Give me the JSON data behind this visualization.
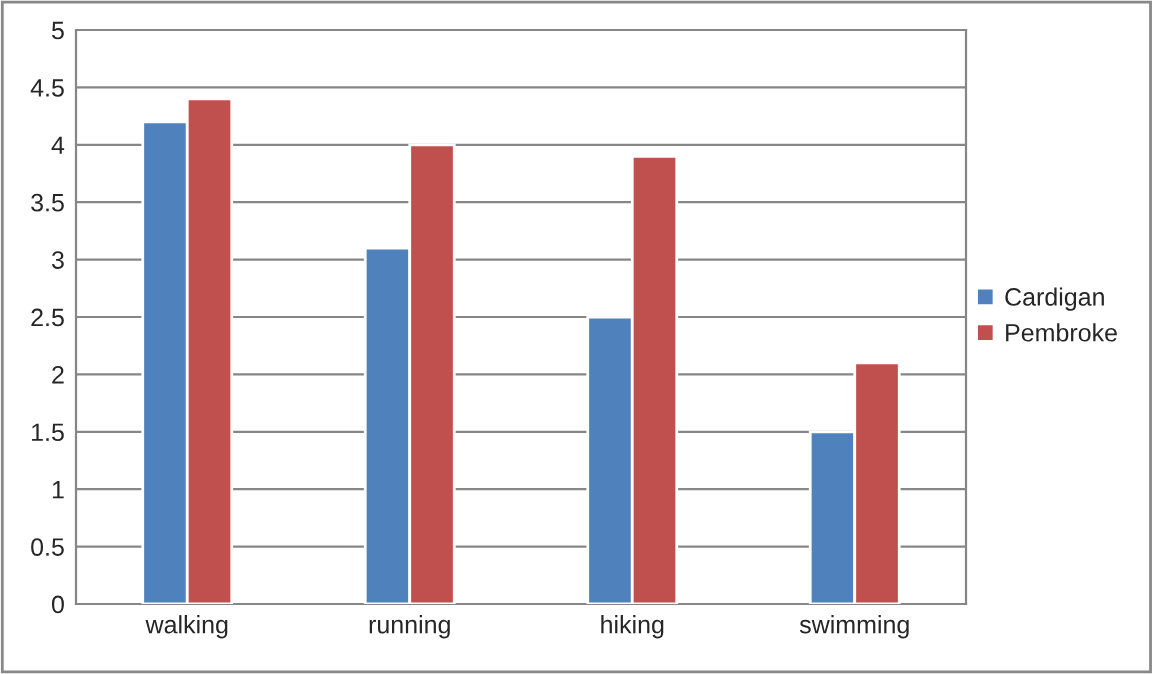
{
  "chart_data": {
    "type": "bar",
    "categories": [
      "walking",
      "running",
      "hiking",
      "swimming"
    ],
    "series": [
      {
        "name": "Cardigan",
        "color": "#4f81bd",
        "values": [
          4.2,
          3.1,
          2.5,
          1.5
        ]
      },
      {
        "name": "Pembroke",
        "color": "#c0504d",
        "values": [
          4.4,
          4.0,
          3.9,
          2.1
        ]
      }
    ],
    "ylim": [
      0,
      5
    ],
    "yticks": [
      0,
      0.5,
      1,
      1.5,
      2,
      2.5,
      3,
      3.5,
      4,
      4.5,
      5
    ],
    "grid": "y",
    "legend": "right"
  }
}
